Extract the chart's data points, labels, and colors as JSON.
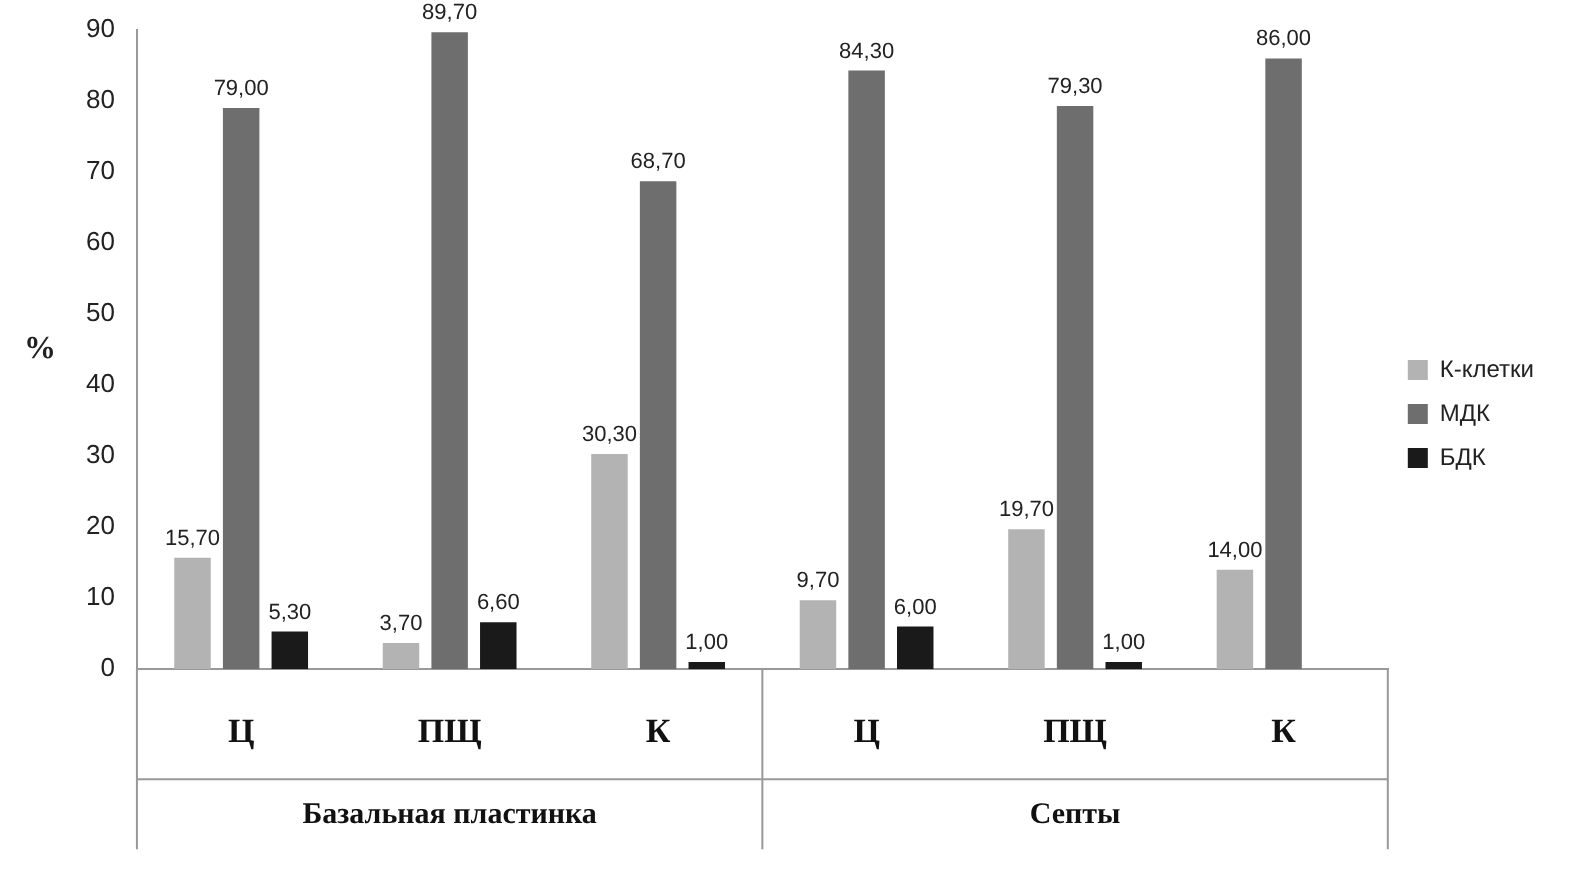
{
  "chart_data": {
    "type": "bar",
    "ylabel": "%",
    "categories": [
      "Ц",
      "ПЩ",
      "К",
      "Ц",
      "ПЩ",
      "К"
    ],
    "series": [
      {
        "name": "К-клетки",
        "color": "#b3b3b3",
        "values": [
          15.7,
          3.7,
          30.3,
          9.7,
          19.7,
          14.0
        ],
        "value_labels": [
          "15,70",
          "3,70",
          "30,30",
          "9,70",
          "19,70",
          "14,00"
        ]
      },
      {
        "name": "МДК",
        "color": "#6e6e6e",
        "values": [
          79.0,
          89.7,
          68.7,
          84.3,
          79.3,
          86.0
        ],
        "value_labels": [
          "79,00",
          "89,70",
          "68,70",
          "84,30",
          "79,30",
          "86,00"
        ]
      },
      {
        "name": "БДК",
        "color": "#1a1a1a",
        "values": [
          5.3,
          6.6,
          1.0,
          6.0,
          1.0,
          null
        ],
        "value_labels": [
          "5,30",
          "6,60",
          "1,00",
          "6,00",
          "1,00",
          null
        ]
      }
    ],
    "annotations": [
      "Базальная пластинка",
      "Септы"
    ],
    "ylim": [
      0,
      90
    ],
    "yticks": [
      0,
      10,
      20,
      30,
      40,
      50,
      60,
      70,
      80,
      90
    ],
    "grid": false,
    "legend": "right"
  }
}
